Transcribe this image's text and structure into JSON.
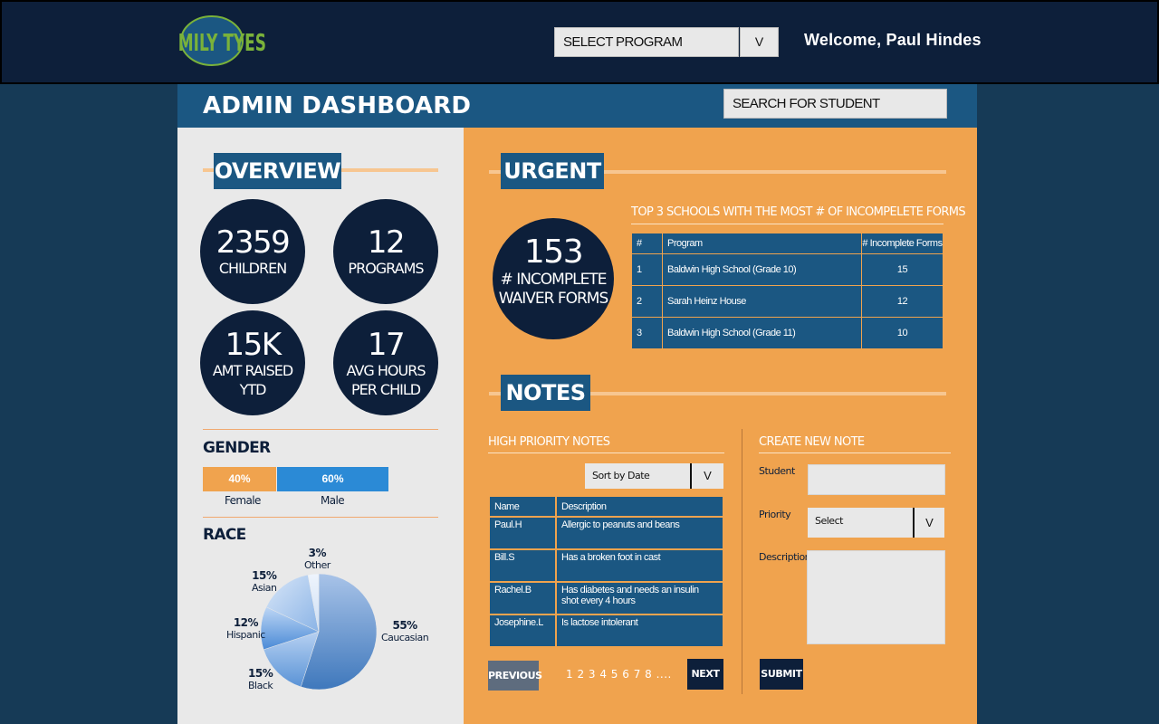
{
  "header": {
    "logo_text": "FAMILY TYES",
    "program_select": "SELECT PROGRAM",
    "program_select_arrow": "V",
    "welcome": "Welcome, Paul Hindes"
  },
  "dashboard": {
    "title": "ADMIN DASHBOARD",
    "search_placeholder": "SEARCH FOR STUDENT"
  },
  "overview": {
    "title": "OVERVIEW",
    "stats": [
      {
        "value": "2359",
        "label1": "CHILDREN",
        "label2": ""
      },
      {
        "value": "12",
        "label1": "PROGRAMS",
        "label2": ""
      },
      {
        "value": "15K",
        "label1": "AMT RAISED",
        "label2": "YTD"
      },
      {
        "value": "17",
        "label1": "AVG HOURS",
        "label2": "PER CHILD"
      }
    ]
  },
  "gender": {
    "title": "GENDER",
    "female_pct": "40%",
    "male_pct": "60%",
    "female_label": "Female",
    "male_label": "Male",
    "female_fraction": 0.4,
    "male_fraction": 0.6,
    "female_color": "#f0a34e",
    "male_color": "#2b8ad6"
  },
  "race": {
    "title": "RACE",
    "slices": [
      {
        "name": "Caucasian",
        "pct": "55%",
        "value": 55
      },
      {
        "name": "Black",
        "pct": "15%",
        "value": 15
      },
      {
        "name": "Hispanic",
        "pct": "12%",
        "value": 12
      },
      {
        "name": "Asian",
        "pct": "15%",
        "value": 15
      },
      {
        "name": "Other",
        "pct": "3%",
        "value": 3
      }
    ]
  },
  "urgent": {
    "title": "URGENT",
    "count": "153",
    "label1": "# INCOMPLETE",
    "label2": "WAIVER FORMS",
    "table_caption": "TOP 3 SCHOOLS WITH THE MOST # OF INCOMPELETE FORMS",
    "columns": [
      "#",
      "Program",
      "# Incomplete Forms"
    ],
    "rows": [
      {
        "rank": "1",
        "program": "Baldwin High School (Grade 10)",
        "count": "15"
      },
      {
        "rank": "2",
        "program": "Sarah Heinz House",
        "count": "12"
      },
      {
        "rank": "3",
        "program": "Baldwin High School (Grade 11)",
        "count": "10"
      }
    ]
  },
  "notes": {
    "title": "NOTES",
    "high_priority_caption": "HIGH PRIORITY NOTES",
    "sort_label": "Sort by Date (Increasing)",
    "sort_arrow": "V",
    "columns": [
      "Name",
      "Description"
    ],
    "rows": [
      {
        "name": "Paul.H",
        "description": "Allergic to peanuts and beans"
      },
      {
        "name": "Bill.S",
        "description": "Has a broken foot in cast"
      },
      {
        "name": "Rachel.B",
        "description": "Has diabetes and needs an insulin shot every 4 hours"
      },
      {
        "name": "Josephine.L",
        "description": " Is lactose intolerant"
      }
    ],
    "previous_label": "PREVIOUS",
    "pages": "1 2 3 4 5 6 7 8 ....",
    "next_label": "NEXT"
  },
  "create_note": {
    "caption": "CREATE NEW NOTE",
    "student_label": "Student",
    "priority_label": "Priority",
    "priority_value": "Select",
    "priority_arrow": "V",
    "description_label": "Description",
    "submit_label": "SUBMIT"
  },
  "colors": {
    "navy": "#0d1f3a",
    "blue": "#1b5782",
    "orange": "#f0a34e"
  }
}
